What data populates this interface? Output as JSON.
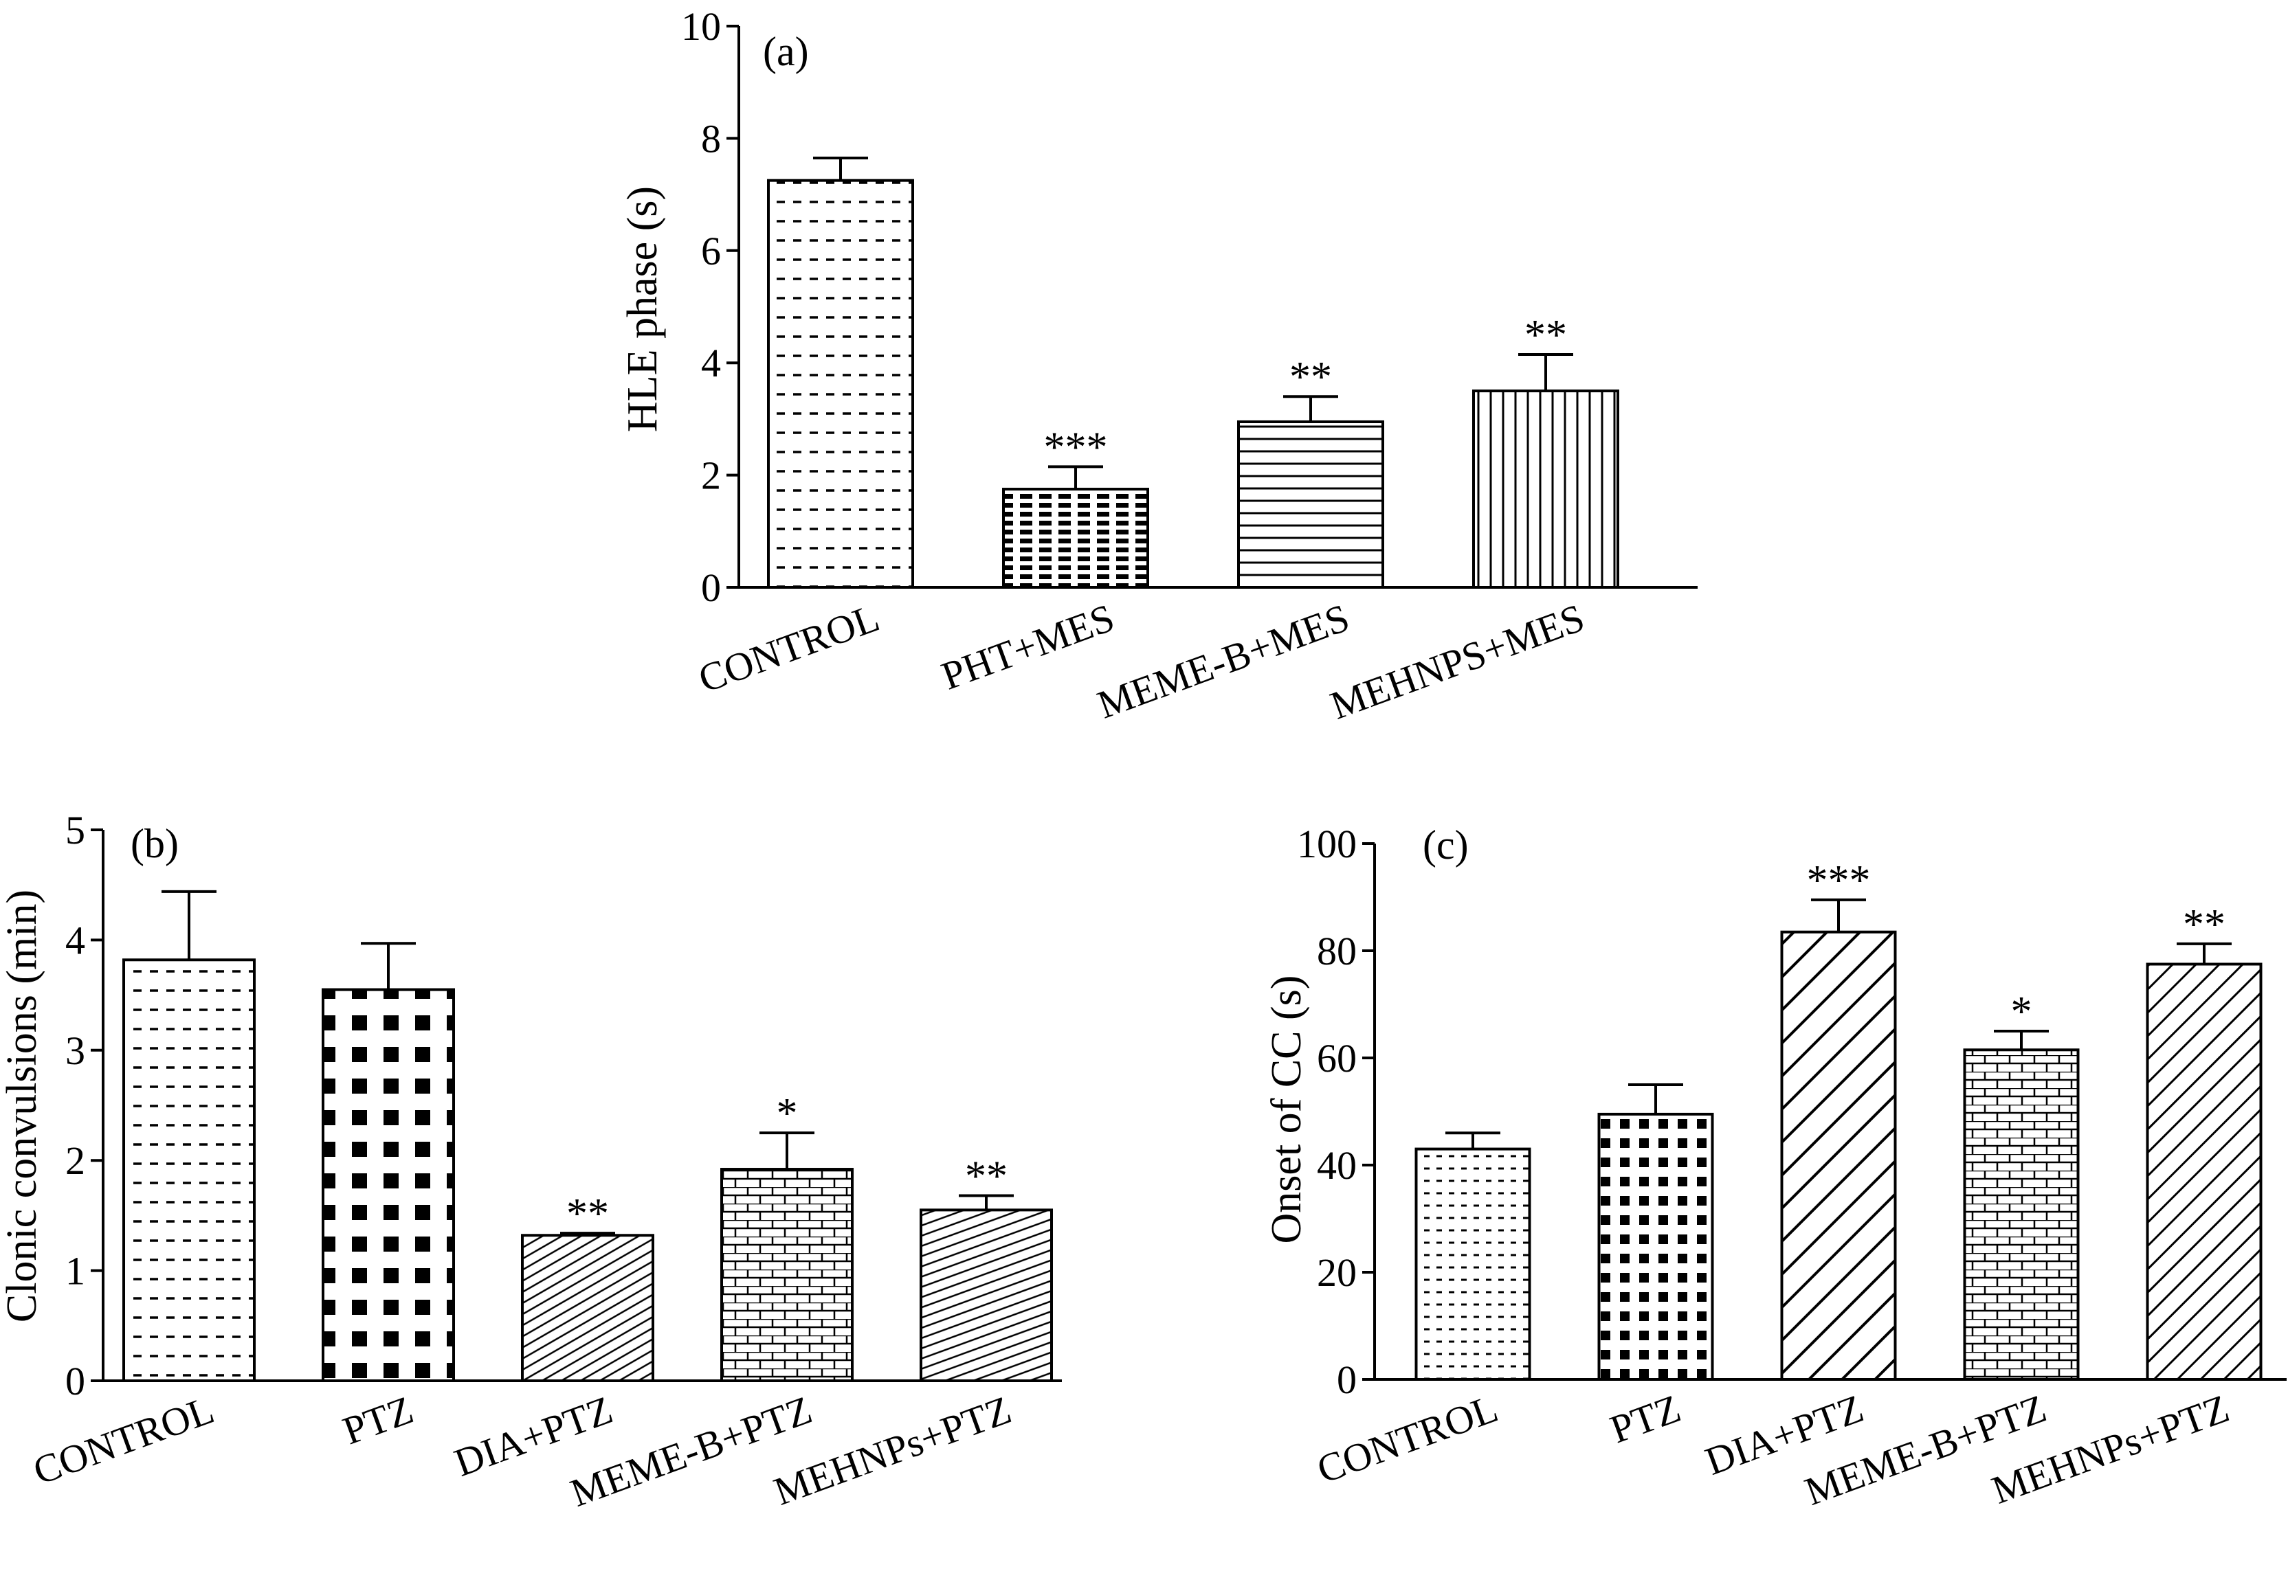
{
  "chart_data": [
    {
      "type": "bar",
      "panel_label": "(a)",
      "ylabel": "HLE phase (s)",
      "ylim": [
        0,
        10
      ],
      "yticks": [
        0,
        2,
        4,
        6,
        8,
        10
      ],
      "categories": [
        "CONTROL",
        "PHT+MES",
        "MEME-B+MES",
        "MEHNPS+MES"
      ],
      "values": [
        7.25,
        1.75,
        2.95,
        3.5
      ],
      "errors": [
        0.4,
        0.4,
        0.45,
        0.65
      ],
      "significance": [
        "",
        "***",
        "**",
        "**"
      ],
      "patterns": [
        "dashes",
        "bricks-dense",
        "hlines",
        "vlines"
      ]
    },
    {
      "type": "bar",
      "panel_label": "(b)",
      "ylabel": "Clonic convulsions (min)",
      "ylim": [
        0,
        5
      ],
      "yticks": [
        0,
        1,
        2,
        3,
        4,
        5
      ],
      "categories": [
        "CONTROL",
        "PTZ",
        "DIA+PTZ",
        "MEME-B+PTZ",
        "MEHNPs+PTZ"
      ],
      "values": [
        3.82,
        3.55,
        1.32,
        1.92,
        1.55
      ],
      "errors": [
        0.62,
        0.42,
        0.02,
        0.33,
        0.13
      ],
      "significance": [
        "",
        "",
        "**",
        "*",
        "**"
      ],
      "patterns": [
        "dashes",
        "checker",
        "diag-fine",
        "bricks",
        "diag-fine2"
      ]
    },
    {
      "type": "bar",
      "panel_label": "(c)",
      "ylabel": "Onset of CC (s)",
      "ylim": [
        0,
        100
      ],
      "yticks": [
        0,
        20,
        40,
        60,
        80,
        100
      ],
      "categories": [
        "CONTROL",
        "PTZ",
        "DIA+PTZ",
        "MEME-B+PTZ",
        "MEHNPs+PTZ"
      ],
      "values": [
        43,
        49.5,
        83.5,
        61.5,
        77.5
      ],
      "errors": [
        3,
        5.5,
        6,
        3.5,
        3.8
      ],
      "significance": [
        "",
        "",
        "***",
        "*",
        "**"
      ],
      "patterns": [
        "dots-dashes",
        "checker-small",
        "diag-wide",
        "bricks",
        "diag-wide2"
      ]
    }
  ]
}
